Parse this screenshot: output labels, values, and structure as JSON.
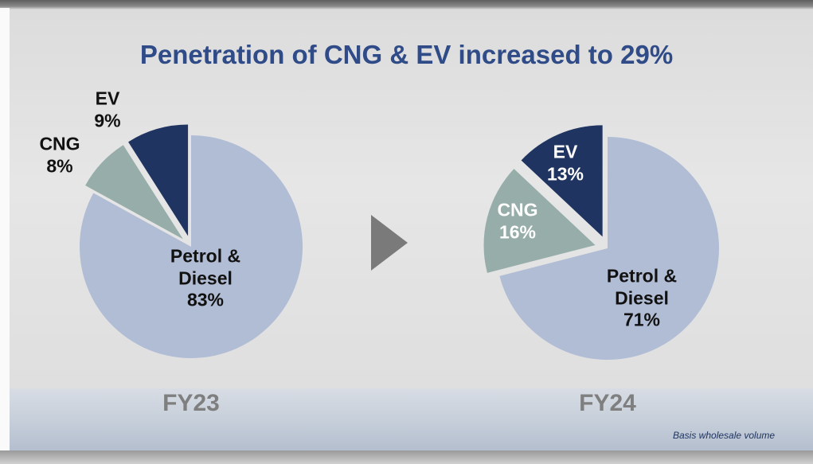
{
  "title": "Penetration of CNG & EV increased to 29%",
  "note": "Basis wholesale volume",
  "chart_data": [
    {
      "type": "pie",
      "title": "FY23",
      "categories": [
        "Petrol & Diesel",
        "CNG",
        "EV"
      ],
      "values": [
        83,
        8,
        9
      ],
      "value_labels": [
        "83%",
        "8%",
        "9%"
      ],
      "colors": [
        "#b1bdd5",
        "#96ada9",
        "#1f3461"
      ]
    },
    {
      "type": "pie",
      "title": "FY24",
      "categories": [
        "Petrol & Diesel",
        "CNG",
        "EV"
      ],
      "values": [
        71,
        16,
        13
      ],
      "value_labels": [
        "71%",
        "16%",
        "13%"
      ],
      "colors": [
        "#b1bdd5",
        "#96ada9",
        "#1f3461"
      ]
    }
  ]
}
